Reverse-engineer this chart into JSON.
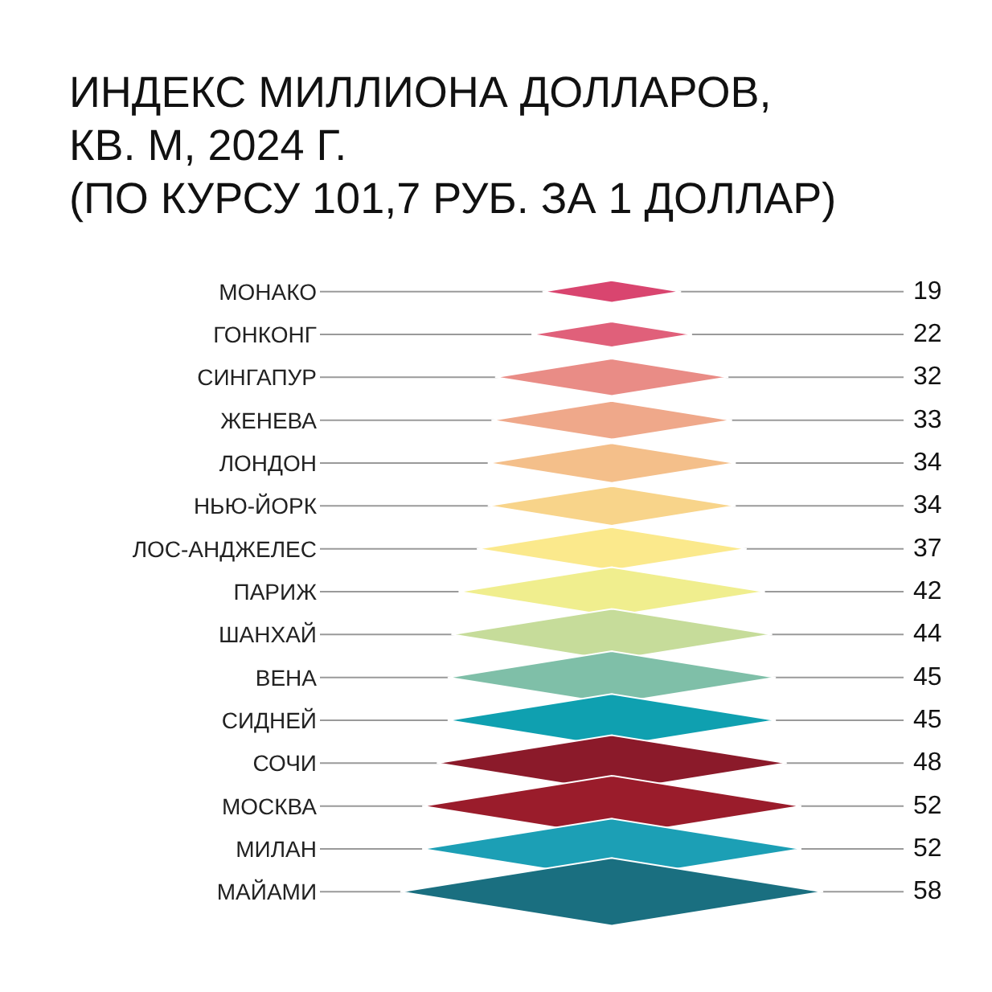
{
  "chart_data": {
    "type": "other",
    "title": "ИНДЕКС МИЛЛИОНА ДОЛЛАРОВ,\nКВ. М, 2024 Г.\n(ПО КУРСУ 101,7 РУБ. ЗА 1 ДОЛЛАР)",
    "categories": [
      "МОНАКО",
      "ГОНКОНГ",
      "СИНГАПУР",
      "ЖЕНЕВА",
      "ЛОНДОН",
      "НЬЮ-ЙОРК",
      "ЛОС-АНДЖЕЛЕС",
      "ПАРИЖ",
      "ШАНХАЙ",
      "ВЕНА",
      "СИДНЕЙ",
      "СОЧИ",
      "МОСКВА",
      "МИЛАН",
      "МАЙАМИ"
    ],
    "values": [
      19,
      22,
      32,
      33,
      34,
      34,
      37,
      42,
      44,
      45,
      45,
      48,
      52,
      52,
      58
    ],
    "colors": [
      "#d9456f",
      "#e0607a",
      "#e98c86",
      "#efa88a",
      "#f4bf8a",
      "#f8d48a",
      "#fbe98c",
      "#f0ee8e",
      "#c6dc9a",
      "#7fbfa8",
      "#0fa0b0",
      "#8b1a2a",
      "#9a1c2b",
      "#1c9fb5",
      "#1a6f80"
    ],
    "data_labels": true
  }
}
